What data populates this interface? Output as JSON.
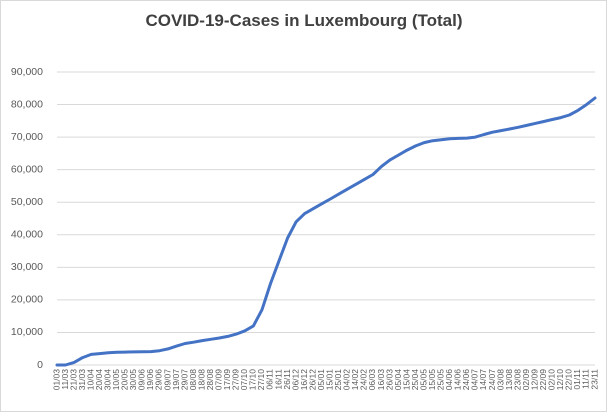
{
  "chart_data": {
    "type": "line",
    "title": "COVID-19-Cases in Luxembourg (Total)",
    "categories": [
      "01/03",
      "11/03",
      "21/03",
      "31/03",
      "10/04",
      "20/04",
      "30/04",
      "10/05",
      "20/05",
      "30/05",
      "09/06",
      "19/06",
      "29/06",
      "09/07",
      "19/07",
      "29/07",
      "08/08",
      "18/08",
      "28/08",
      "07/09",
      "17/09",
      "27/09",
      "07/10",
      "17/10",
      "27/10",
      "06/11",
      "16/11",
      "26/11",
      "06/12",
      "16/12",
      "26/12",
      "05/01",
      "15/01",
      "25/01",
      "04/02",
      "14/02",
      "24/02",
      "06/03",
      "16/03",
      "26/03",
      "05/04",
      "15/04",
      "25/04",
      "05/05",
      "15/05",
      "25/05",
      "04/06",
      "14/06",
      "24/06",
      "04/07",
      "14/07",
      "24/07",
      "03/08",
      "13/08",
      "23/08",
      "02/09",
      "12/09",
      "22/09",
      "02/10",
      "12/10",
      "22/10",
      "01/11",
      "11/11",
      "23/11"
    ],
    "series": [
      {
        "name": "Total",
        "color": "#4472c4",
        "values": [
          0,
          7,
          798,
          2270,
          3270,
          3500,
          3750,
          3900,
          3970,
          4010,
          4060,
          4120,
          4400,
          4950,
          5800,
          6600,
          7000,
          7500,
          7900,
          8300,
          8800,
          9500,
          10500,
          12000,
          17000,
          25000,
          32000,
          39000,
          44000,
          46500,
          48000,
          49500,
          51000,
          52500,
          54000,
          55500,
          57000,
          58500,
          61000,
          63000,
          64500,
          66000,
          67300,
          68300,
          68900,
          69200,
          69500,
          69600,
          69700,
          70000,
          70800,
          71500,
          72000,
          72500,
          73000,
          73600,
          74200,
          74800,
          75400,
          76000,
          76800,
          78200,
          80000,
          82000
        ]
      }
    ],
    "ylim": [
      0,
      90000
    ],
    "yticks": [
      {
        "value": 0,
        "label": "0"
      },
      {
        "value": 10000,
        "label": "10,000"
      },
      {
        "value": 20000,
        "label": "20,000"
      },
      {
        "value": 30000,
        "label": "30,000"
      },
      {
        "value": 40000,
        "label": "40,000"
      },
      {
        "value": 50000,
        "label": "50,000"
      },
      {
        "value": 60000,
        "label": "60,000"
      },
      {
        "value": 70000,
        "label": "70,000"
      },
      {
        "value": 80000,
        "label": "80,000"
      },
      {
        "value": 90000,
        "label": "90,000"
      }
    ],
    "grid": true
  }
}
